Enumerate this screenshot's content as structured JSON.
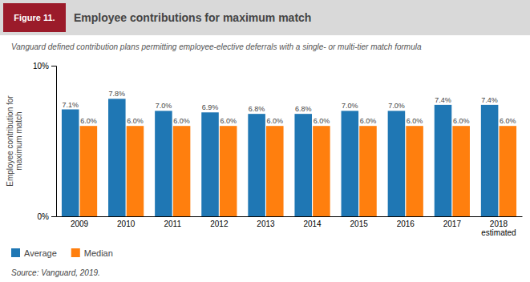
{
  "chart_data": {
    "type": "bar",
    "title": "Employee contributions for maximum match",
    "subtitle": "Vanguard defined contribution plans permitting employee-elective deferrals with a single- or multi-tier match formula",
    "annotations": [
      "Figure 11.",
      "Source: Vanguard, 2019."
    ],
    "ylabel": "Employee contribution for\nmaximum match",
    "categories": [
      "2009",
      "2010",
      "2011",
      "2012",
      "2013",
      "2014",
      "2015",
      "2016",
      "2017",
      "2018\nestimated"
    ],
    "series": [
      {
        "name": "Average",
        "values": [
          7.1,
          7.8,
          7.0,
          6.9,
          6.8,
          6.8,
          7.0,
          7.0,
          7.4,
          7.4
        ],
        "value_labels": [
          "7.1%",
          "7.8%",
          "7.0%",
          "6.9%",
          "6.8%",
          "6.8%",
          "7.0%",
          "7.0%",
          "7.4%",
          "7.4%"
        ]
      },
      {
        "name": "Median",
        "values": [
          6.0,
          6.0,
          6.0,
          6.0,
          6.0,
          6.0,
          6.0,
          6.0,
          6.0,
          6.0
        ],
        "value_labels": [
          "6.0%",
          "6.0%",
          "6.0%",
          "6.0%",
          "6.0%",
          "6.0%",
          "6.0%",
          "6.0%",
          "6.0%",
          "6.0%"
        ]
      }
    ],
    "ylim": [
      0,
      10
    ],
    "yticks": [
      {
        "value": 0,
        "label": "0%"
      },
      {
        "value": 10,
        "label": "10%"
      }
    ],
    "data_labels": true,
    "grid": false,
    "legend": "bottom"
  }
}
